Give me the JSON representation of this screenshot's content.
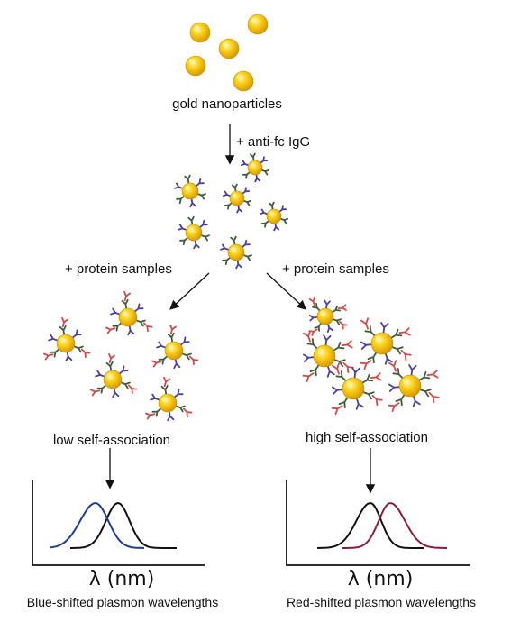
{
  "labels": {
    "gold_nanoparticles": "gold nanoparticles",
    "anti_fc": "+ anti-fc IgG",
    "protein_left": "+ protein samples",
    "protein_right": "+ protein samples",
    "low_self_association": "low self-association",
    "high_self_association": "high self-association"
  },
  "plots": {
    "left": {
      "axis_label": "λ (nm)",
      "caption": "Blue-shifted plasmon wavelengths"
    },
    "right": {
      "axis_label": "λ (nm)",
      "caption": "Red-shifted plasmon wavelengths"
    }
  },
  "colors": {
    "gold": "#f5c000",
    "gold_highlight": "#fff3a0",
    "antibody_blue": "#4b3f9e",
    "antibody_green": "#3e5e3a",
    "protein_red": "#d24a4a",
    "curve_black": "#111111",
    "curve_blue": "#1f3e8e",
    "curve_red": "#8a1f3c"
  }
}
